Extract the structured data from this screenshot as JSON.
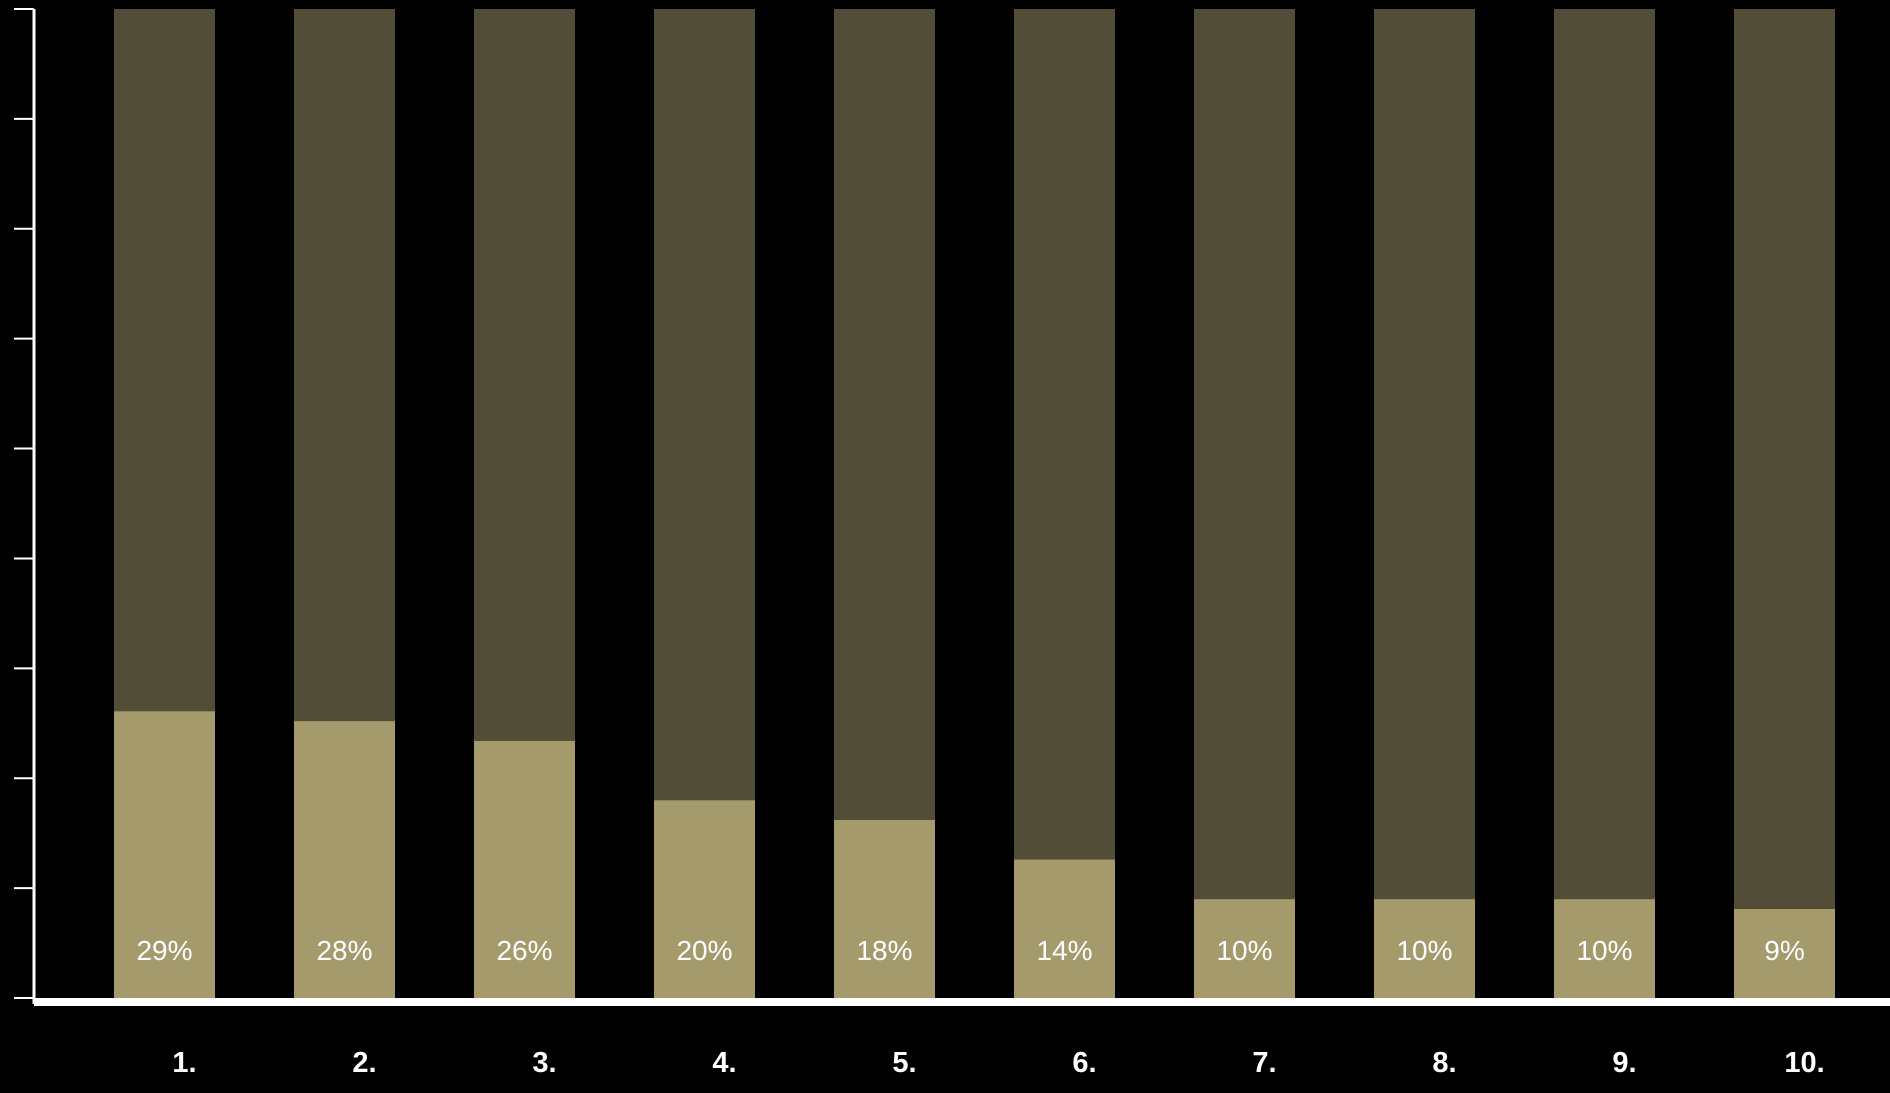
{
  "chart_data": {
    "type": "bar",
    "stacked_as_percent_of_total": true,
    "categories": [
      "1.",
      "2.",
      "3.",
      "4.",
      "5.",
      "6.",
      "7.",
      "8.",
      "9.",
      "10."
    ],
    "values": [
      29,
      28,
      26,
      20,
      18,
      14,
      10,
      10,
      10,
      9
    ],
    "value_labels": [
      "29%",
      "28%",
      "26%",
      "20%",
      "18%",
      "14%",
      "10%",
      "10%",
      "10%",
      "9%"
    ],
    "total": 100,
    "ylim": [
      0,
      100
    ],
    "y_ticks": [
      0,
      11.11,
      22.22,
      33.33,
      44.44,
      55.56,
      66.67,
      77.78,
      88.89,
      100
    ],
    "y_tick_labels_shown": false,
    "grid": false,
    "title": "",
    "xlabel": "",
    "ylabel": "",
    "colors": {
      "background": "#000000",
      "value_fill": "#A59A6C",
      "remainder_fill": "#524D37",
      "axis": "#FFFFFF",
      "label_text": "#FFFFFF"
    }
  }
}
